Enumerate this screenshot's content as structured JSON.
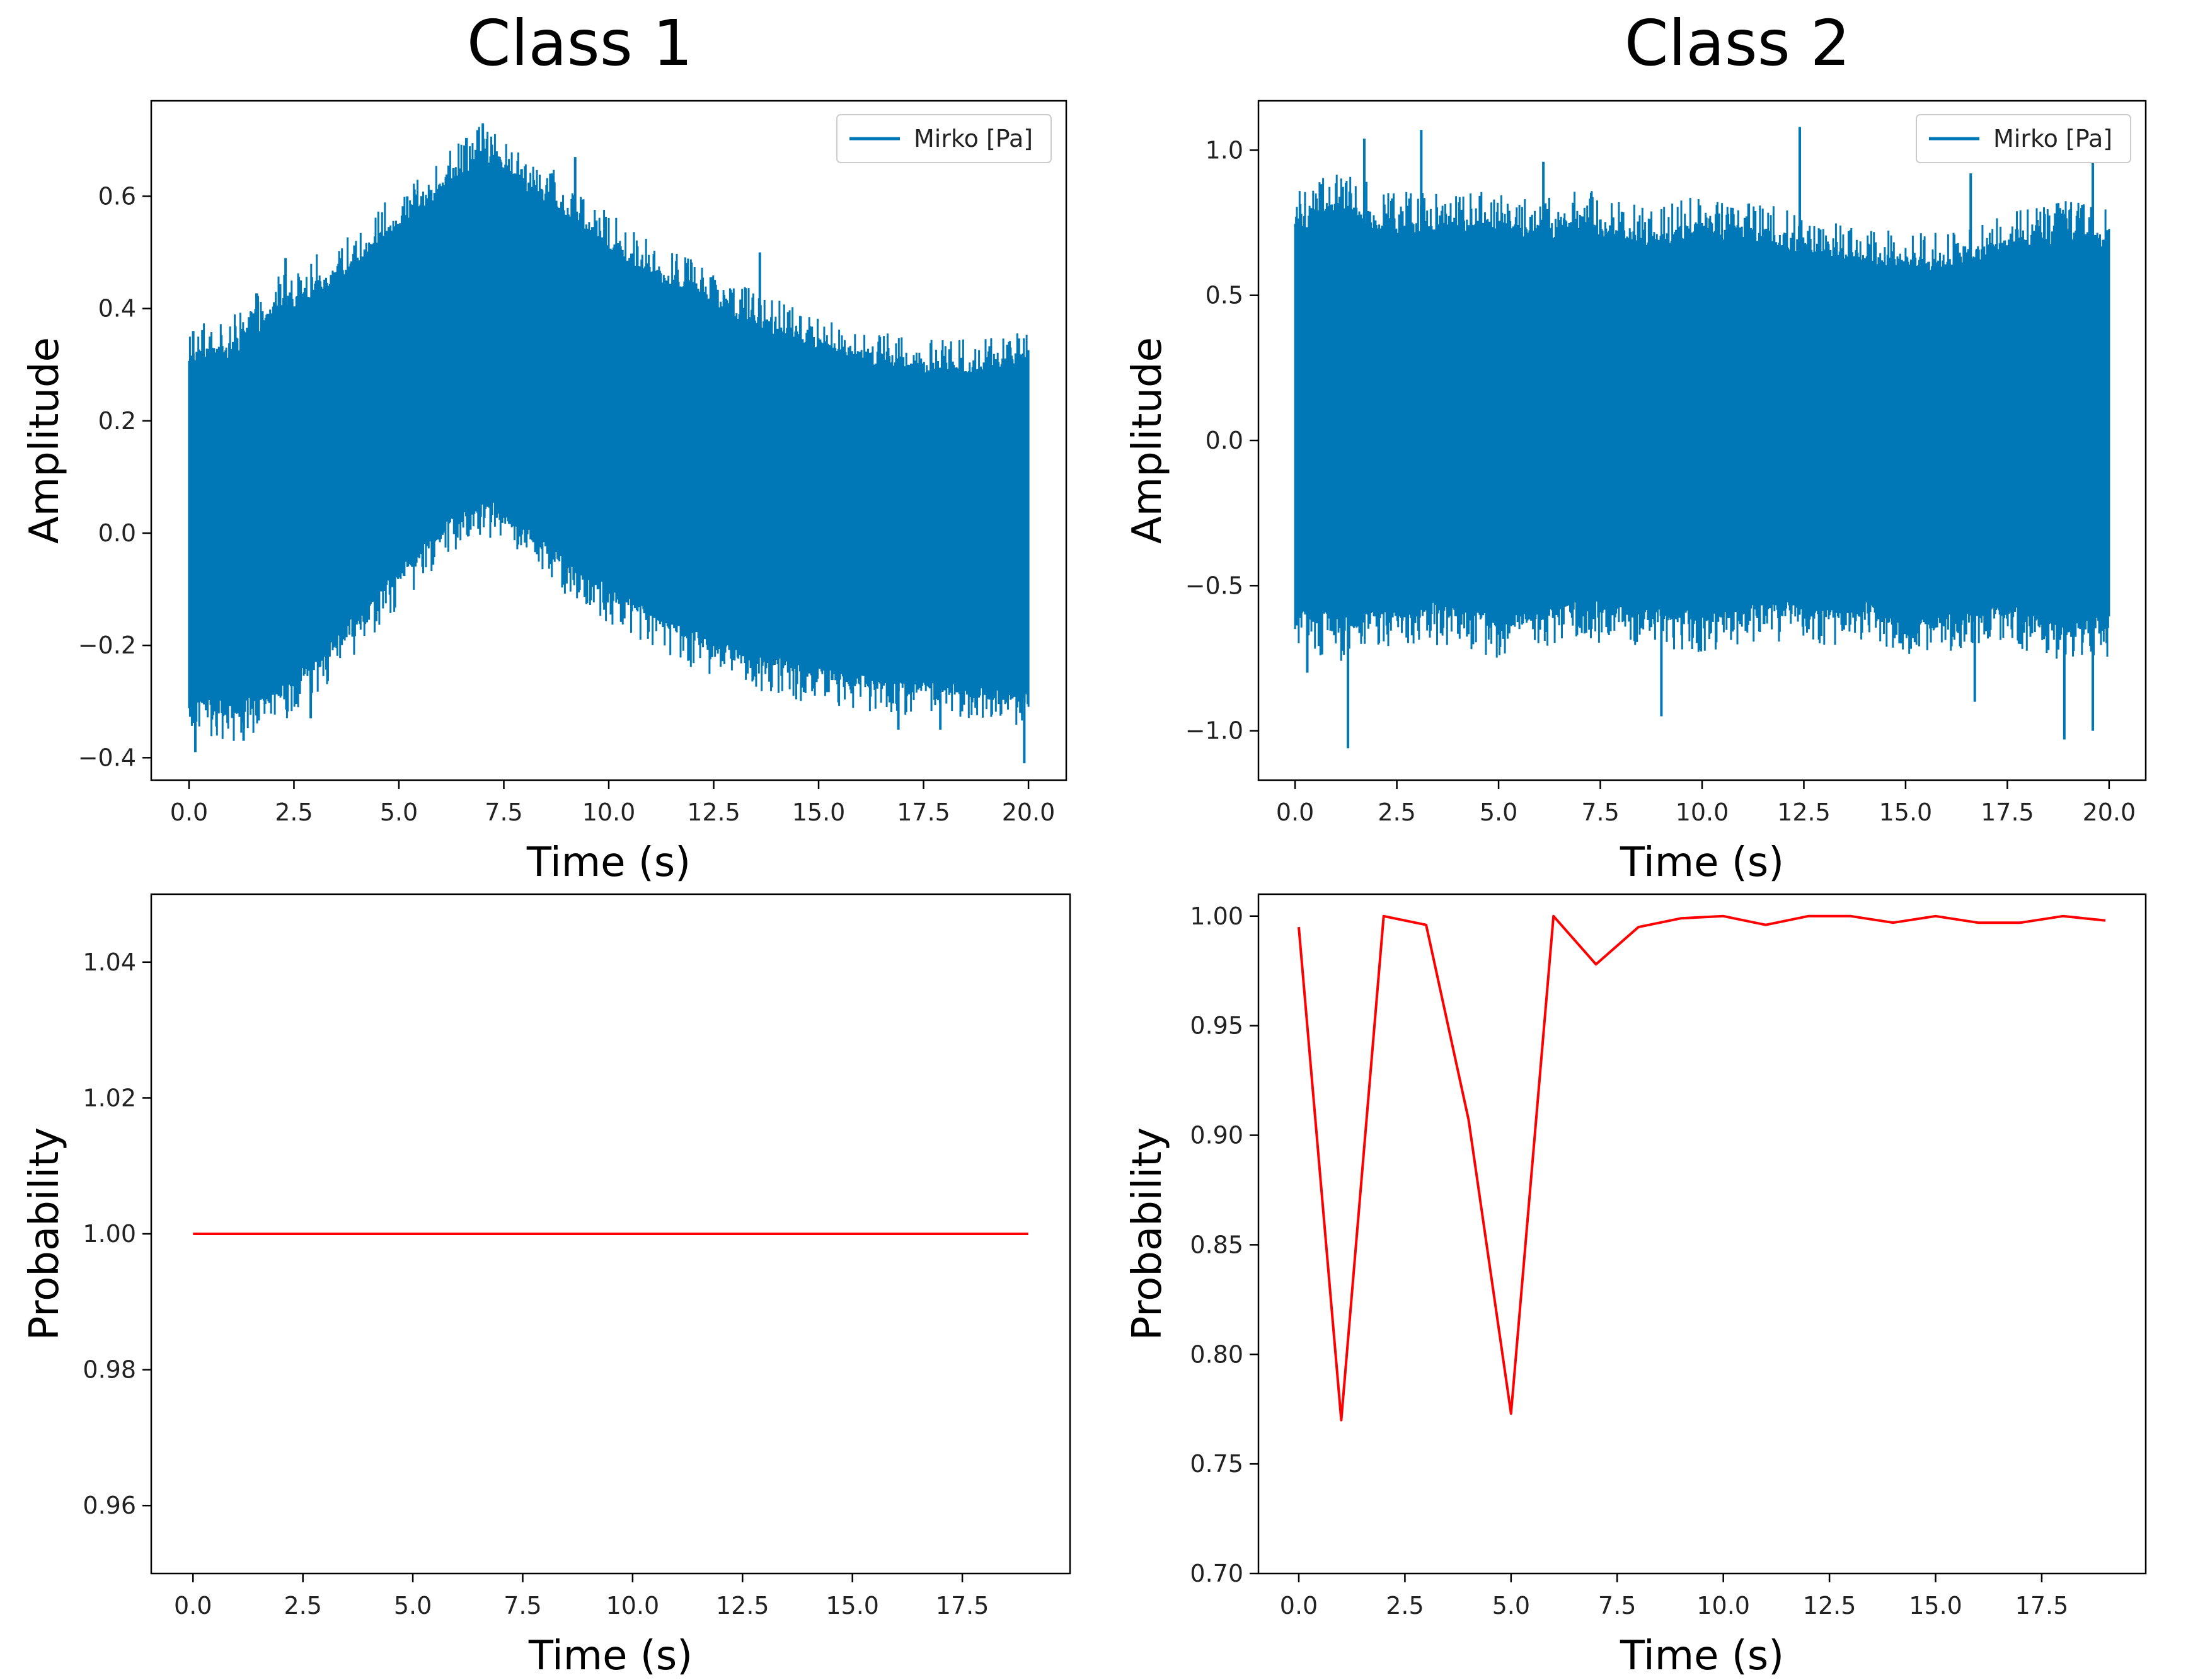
{
  "titles": {
    "left": "Class 1",
    "right": "Class 2"
  },
  "colors": {
    "signal": "#0077b6",
    "probability": "#ff0000",
    "axis": "#000000"
  },
  "chart_data": [
    {
      "id": "c1_signal",
      "type": "line",
      "style": "noise-band",
      "title": "Class 1",
      "xlabel": "Time (s)",
      "ylabel": "Amplitude",
      "xlim": [
        -0.9,
        20.9
      ],
      "ylim": [
        -0.44,
        0.77
      ],
      "xticks": [
        0,
        2.5,
        5,
        7.5,
        10,
        12.5,
        15,
        17.5,
        20
      ],
      "xtick_labels": [
        "0.0",
        "2.5",
        "5.0",
        "7.5",
        "10.0",
        "12.5",
        "15.0",
        "17.5",
        "20.0"
      ],
      "yticks": [
        -0.4,
        -0.2,
        0.0,
        0.2,
        0.4,
        0.6
      ],
      "ytick_labels": [
        "−0.4",
        "−0.2",
        "0.0",
        "0.2",
        "0.4",
        "0.6"
      ],
      "legend": {
        "label": "Mirko [Pa]",
        "position": "top-right"
      },
      "envelope": {
        "t": [
          0,
          1,
          2,
          3,
          4,
          5,
          6,
          7,
          8,
          9,
          10,
          11,
          12,
          13,
          14,
          15,
          16,
          17,
          18,
          19,
          20
        ],
        "upper": [
          0.3,
          0.31,
          0.38,
          0.42,
          0.47,
          0.54,
          0.6,
          0.66,
          0.61,
          0.56,
          0.5,
          0.45,
          0.42,
          0.38,
          0.35,
          0.32,
          0.3,
          0.29,
          0.28,
          0.28,
          0.3
        ],
        "lower": [
          -0.28,
          -0.3,
          -0.27,
          -0.22,
          -0.14,
          -0.06,
          0.02,
          0.07,
          0.02,
          -0.04,
          -0.09,
          -0.13,
          -0.17,
          -0.2,
          -0.22,
          -0.24,
          -0.25,
          -0.26,
          -0.26,
          -0.27,
          -0.28
        ]
      },
      "spikes": [
        {
          "t": 0.1,
          "v": 0.36
        },
        {
          "t": 0.15,
          "v": -0.39
        },
        {
          "t": 0.5,
          "v": 0.35
        },
        {
          "t": 1.3,
          "v": -0.37
        },
        {
          "t": 2.3,
          "v": 0.49
        },
        {
          "t": 2.9,
          "v": -0.33
        },
        {
          "t": 3.3,
          "v": 0.4
        },
        {
          "t": 5.2,
          "v": 0.6
        },
        {
          "t": 6.3,
          "v": 0.65
        },
        {
          "t": 7.0,
          "v": 0.73
        },
        {
          "t": 7.4,
          "v": 0.67
        },
        {
          "t": 9.2,
          "v": 0.67
        },
        {
          "t": 13.6,
          "v": 0.5
        },
        {
          "t": 13.3,
          "v": -0.22
        },
        {
          "t": 16.9,
          "v": -0.35
        },
        {
          "t": 17.9,
          "v": -0.35
        },
        {
          "t": 19.9,
          "v": -0.41
        }
      ]
    },
    {
      "id": "c2_signal",
      "type": "line",
      "style": "noise-band",
      "title": "Class 2",
      "xlabel": "Time (s)",
      "ylabel": "Amplitude",
      "xlim": [
        -0.9,
        20.9
      ],
      "ylim": [
        -1.17,
        1.17
      ],
      "xticks": [
        0,
        2.5,
        5,
        7.5,
        10,
        12.5,
        15,
        17.5,
        20
      ],
      "xtick_labels": [
        "0.0",
        "2.5",
        "5.0",
        "7.5",
        "10.0",
        "12.5",
        "15.0",
        "17.5",
        "20.0"
      ],
      "yticks": [
        -1.0,
        -0.5,
        0.0,
        0.5,
        1.0
      ],
      "ytick_labels": [
        "−1.0",
        "−0.5",
        "0.0",
        "0.5",
        "1.0"
      ],
      "legend": {
        "label": "Mirko [Pa]",
        "position": "top-right"
      },
      "envelope": {
        "t": [
          0,
          1,
          2,
          3,
          4,
          5,
          6,
          7,
          8,
          9,
          10,
          11,
          12,
          13,
          14,
          15,
          16,
          17,
          18,
          19,
          20
        ],
        "upper": [
          0.7,
          0.78,
          0.72,
          0.7,
          0.72,
          0.7,
          0.68,
          0.72,
          0.68,
          0.66,
          0.7,
          0.68,
          0.66,
          0.62,
          0.6,
          0.58,
          0.58,
          0.62,
          0.66,
          0.68,
          0.65
        ],
        "lower": [
          -0.55,
          -0.6,
          -0.57,
          -0.55,
          -0.56,
          -0.6,
          -0.56,
          -0.55,
          -0.55,
          -0.57,
          -0.58,
          -0.56,
          -0.55,
          -0.57,
          -0.55,
          -0.6,
          -0.6,
          -0.55,
          -0.58,
          -0.62,
          -0.6
        ]
      },
      "spikes": [
        {
          "t": 0.3,
          "v": -0.8
        },
        {
          "t": 1.3,
          "v": -1.06
        },
        {
          "t": 1.7,
          "v": 1.04
        },
        {
          "t": 3.1,
          "v": 1.07
        },
        {
          "t": 6.1,
          "v": 0.96
        },
        {
          "t": 9.0,
          "v": -0.95
        },
        {
          "t": 12.4,
          "v": 1.08
        },
        {
          "t": 16.6,
          "v": 0.92
        },
        {
          "t": 16.7,
          "v": -0.9
        },
        {
          "t": 18.9,
          "v": -1.03
        },
        {
          "t": 19.6,
          "v": 0.97
        },
        {
          "t": 19.6,
          "v": -1.0
        }
      ]
    },
    {
      "id": "c1_prob",
      "type": "line",
      "xlabel": "Time (s)",
      "ylabel": "Probability",
      "xlim": [
        -0.95,
        19.95
      ],
      "ylim": [
        0.95,
        1.05
      ],
      "xticks": [
        0,
        2.5,
        5,
        7.5,
        10,
        12.5,
        15,
        17.5
      ],
      "xtick_labels": [
        "0.0",
        "2.5",
        "5.0",
        "7.5",
        "10.0",
        "12.5",
        "15.0",
        "17.5"
      ],
      "yticks": [
        0.96,
        0.98,
        1.0,
        1.02,
        1.04
      ],
      "ytick_labels": [
        "0.96",
        "0.98",
        "1.00",
        "1.02",
        "1.04"
      ],
      "x": [
        0,
        1,
        2,
        3,
        4,
        5,
        6,
        7,
        8,
        9,
        10,
        11,
        12,
        13,
        14,
        15,
        16,
        17,
        18,
        19
      ],
      "y": [
        1,
        1,
        1,
        1,
        1,
        1,
        1,
        1,
        1,
        1,
        1,
        1,
        1,
        1,
        1,
        1,
        1,
        1,
        1,
        1
      ]
    },
    {
      "id": "c2_prob",
      "type": "line",
      "xlabel": "Time (s)",
      "ylabel": "Probability",
      "xlim": [
        -0.95,
        19.95
      ],
      "ylim": [
        0.7,
        1.01
      ],
      "xticks": [
        0,
        2.5,
        5,
        7.5,
        10,
        12.5,
        15,
        17.5
      ],
      "xtick_labels": [
        "0.0",
        "2.5",
        "5.0",
        "7.5",
        "10.0",
        "12.5",
        "15.0",
        "17.5"
      ],
      "yticks": [
        0.7,
        0.75,
        0.8,
        0.85,
        0.9,
        0.95,
        1.0
      ],
      "ytick_labels": [
        "0.70",
        "0.75",
        "0.80",
        "0.85",
        "0.90",
        "0.95",
        "1.00"
      ],
      "x": [
        0,
        1,
        2,
        3,
        4,
        5,
        6,
        7,
        8,
        9,
        10,
        11,
        12,
        13,
        14,
        15,
        16,
        17,
        18,
        19
      ],
      "y": [
        0.995,
        0.77,
        1.0,
        0.996,
        0.907,
        0.773,
        1.0,
        0.978,
        0.995,
        0.999,
        1.0,
        0.996,
        1.0,
        1.0,
        0.997,
        1.0,
        0.997,
        0.997,
        1.0,
        0.998
      ]
    }
  ]
}
